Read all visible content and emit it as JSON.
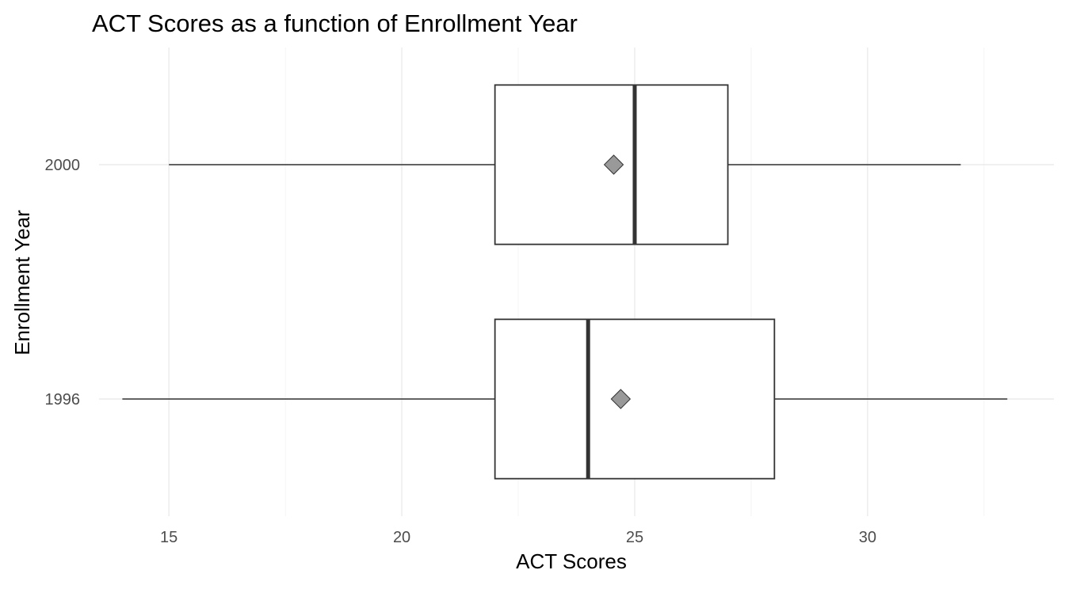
{
  "chart_data": {
    "type": "boxplot",
    "orientation": "horizontal",
    "title": "ACT Scores as a function of Enrollment  Year",
    "xlabel": "ACT Scores",
    "ylabel": "Enrollment Year",
    "xlim": [
      13.5,
      34
    ],
    "x_ticks": [
      15,
      20,
      25,
      30
    ],
    "x_ticks_labels": [
      "15",
      "20",
      "25",
      "30"
    ],
    "grid": true,
    "legend": "none",
    "categories": [
      "1996",
      "2000"
    ],
    "boxes": [
      {
        "category": "1996",
        "min": 14,
        "q1": 22,
        "median": 24,
        "q3": 28,
        "max": 33,
        "mean": 24.7
      },
      {
        "category": "2000",
        "min": 15,
        "q1": 22,
        "median": 25,
        "q3": 27,
        "max": 32,
        "mean": 24.55
      }
    ],
    "colors": {
      "box_outline": "#333333",
      "mean_marker_fill": "#999999",
      "mean_marker_stroke": "#333333",
      "grid": "#ebebeb"
    }
  }
}
